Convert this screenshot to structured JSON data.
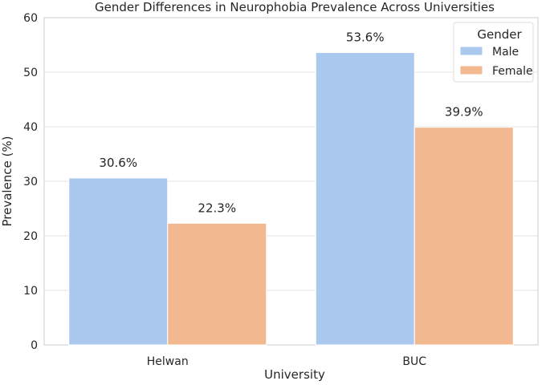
{
  "chart_data": {
    "type": "bar",
    "title": "Gender Differences in Neurophobia Prevalence Across Universities",
    "xlabel": "University",
    "ylabel": "Prevalence (%)",
    "categories": [
      "Helwan",
      "BUC"
    ],
    "series": [
      {
        "name": "Male",
        "values": [
          30.6,
          53.6
        ],
        "labels": [
          "30.6%",
          "53.6%"
        ],
        "color": "#abc9ef"
      },
      {
        "name": "Female",
        "values": [
          22.3,
          39.9
        ],
        "labels": [
          "22.3%",
          "39.9%"
        ],
        "color": "#f2b890"
      }
    ],
    "ylim": [
      0,
      60
    ],
    "yticks": [
      0,
      10,
      20,
      30,
      40,
      50,
      60
    ],
    "grid": true,
    "legend": {
      "title": "Gender",
      "placement": "top-right"
    }
  }
}
